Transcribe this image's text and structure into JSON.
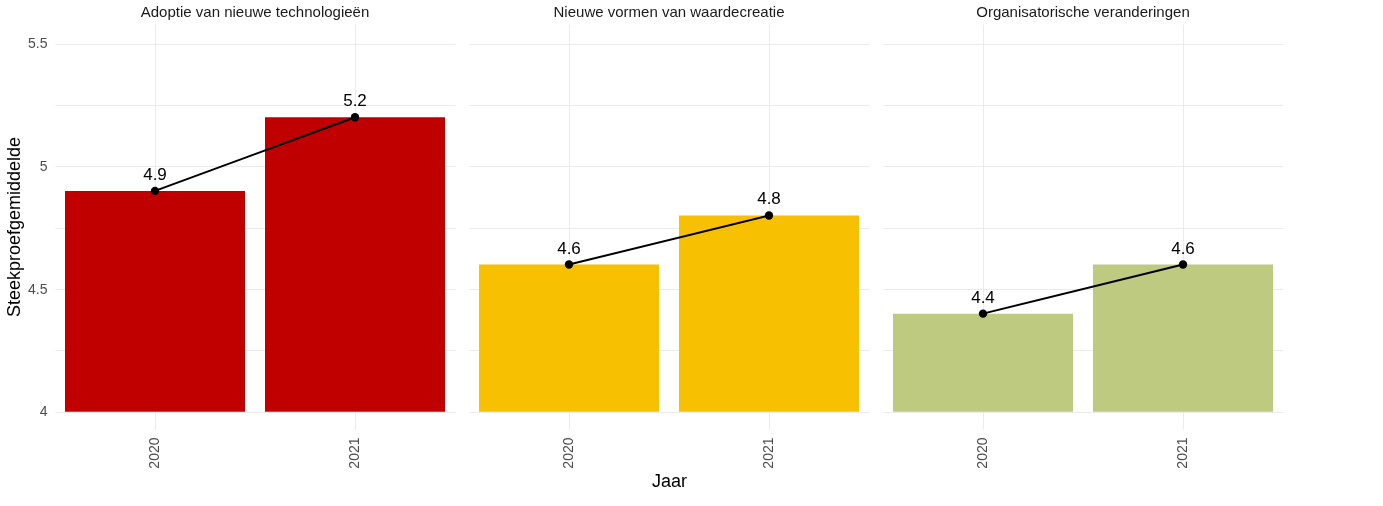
{
  "chart_data": [
    {
      "type": "bar",
      "title": "Adoptie van nieuwe technologieën",
      "ylabel": "Steekproefgemiddelde",
      "categories": [
        "2020",
        "2021"
      ],
      "ylim": [
        3.93,
        5.58
      ],
      "yticks": [
        4,
        {
          "value": 4.25,
          "label": null
        },
        4.5,
        {
          "value": 4.75,
          "label": null
        },
        5,
        {
          "value": 5.25,
          "label": null
        },
        5.5
      ],
      "grid": true,
      "series": [
        {
          "color": "#c00000",
          "base": [
            4,
            4
          ],
          "values": [
            0.9,
            1.2
          ]
        },
        {
          "type": "line",
          "color": "#000000",
          "marker": "circle",
          "line_style": "solid",
          "values": [
            4.9,
            5.2
          ],
          "value_labels": [
            "4.9",
            "5.2"
          ]
        }
      ]
    },
    {
      "type": "bar",
      "title": "Nieuwe vormen van waardecreatie",
      "xlabel": "Jaar",
      "categories": [
        "2020",
        "2021"
      ],
      "ylim": [
        3.93,
        5.58
      ],
      "yticks": [
        4,
        {
          "value": 4.25,
          "label": null
        },
        4.5,
        {
          "value": 4.75,
          "label": null
        },
        5,
        {
          "value": 5.25,
          "label": null
        },
        5.5
      ],
      "grid": true,
      "tick_labels": "x",
      "series": [
        {
          "color": "#f7c000",
          "base": [
            4,
            4
          ],
          "values": [
            0.6,
            0.8
          ]
        },
        {
          "type": "line",
          "color": "#000000",
          "marker": "circle",
          "line_style": "solid",
          "values": [
            4.6,
            4.8
          ],
          "value_labels": [
            "4.6",
            "4.8"
          ]
        }
      ]
    },
    {
      "type": "bar",
      "title": "Organisatorische veranderingen",
      "categories": [
        "2020",
        "2021"
      ],
      "ylim": [
        3.93,
        5.58
      ],
      "yticks": [
        4,
        {
          "value": 4.25,
          "label": null
        },
        4.5,
        {
          "value": 4.75,
          "label": null
        },
        5,
        {
          "value": 5.25,
          "label": null
        },
        5.5
      ],
      "grid": true,
      "tick_labels": "x",
      "series": [
        {
          "color": "#bdca80",
          "base": [
            4,
            4
          ],
          "values": [
            0.4,
            0.6
          ]
        },
        {
          "type": "line",
          "color": "#000000",
          "marker": "circle",
          "line_style": "solid",
          "values": [
            4.4,
            4.6
          ],
          "value_labels": [
            "4.4",
            "4.6"
          ]
        }
      ]
    }
  ]
}
